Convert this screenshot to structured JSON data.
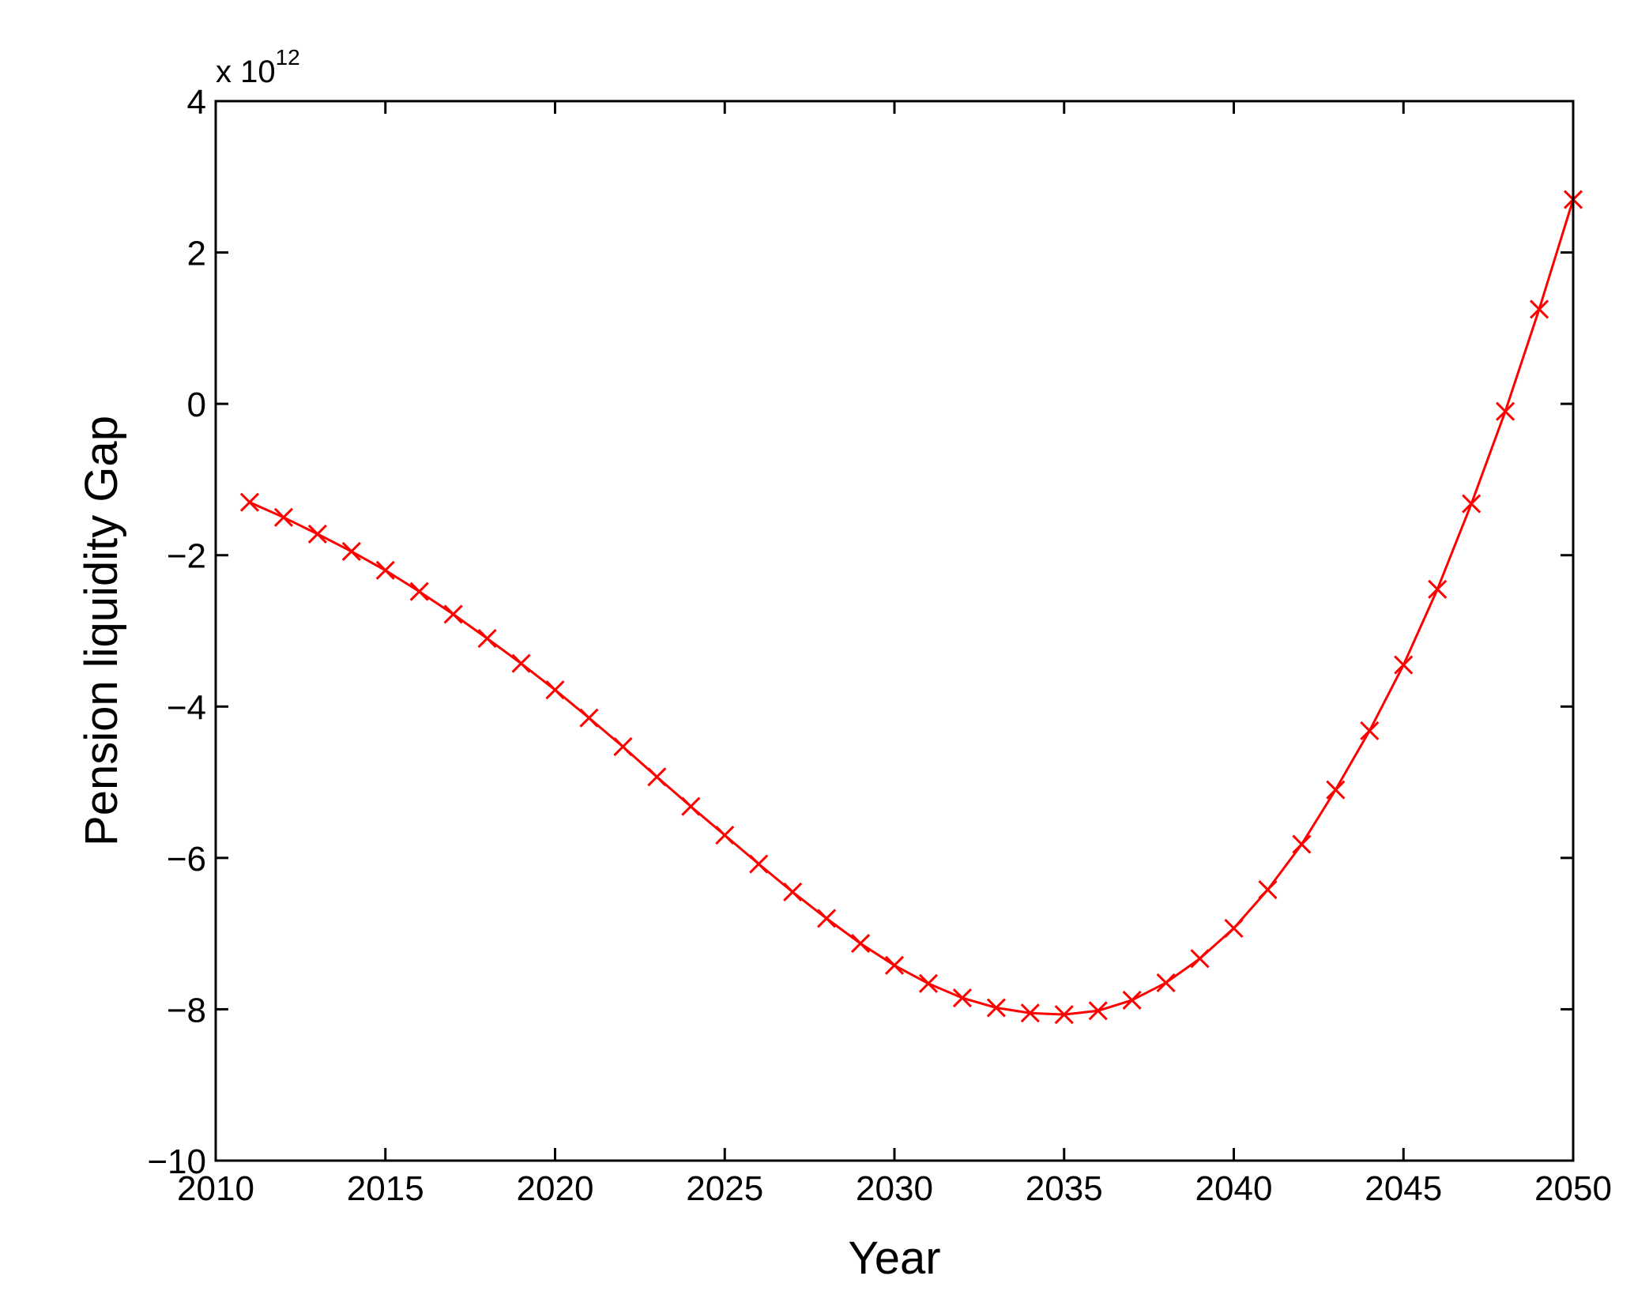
{
  "chart_data": {
    "type": "line",
    "title": "",
    "xlabel": "Year",
    "ylabel": "Pension liquidity Gap",
    "y_scale_factor": {
      "prefix": "x 10",
      "exponent": "12"
    },
    "xlim": [
      2010,
      2050
    ],
    "ylim": [
      -10,
      4
    ],
    "x_ticks": [
      "2010",
      "2015",
      "2020",
      "2025",
      "2030",
      "2035",
      "2040",
      "2045",
      "2050"
    ],
    "y_ticks": [
      "4",
      "2",
      "0",
      "−2",
      "−4",
      "−6",
      "−8",
      "−10"
    ],
    "grid": false,
    "legend": "none",
    "series": [
      {
        "color": "#ff0000",
        "marker": "x",
        "x": [
          2011,
          2012,
          2013,
          2014,
          2015,
          2016,
          2017,
          2018,
          2019,
          2020,
          2021,
          2022,
          2023,
          2024,
          2025,
          2026,
          2027,
          2028,
          2029,
          2030,
          2031,
          2032,
          2033,
          2034,
          2035,
          2036,
          2037,
          2038,
          2039,
          2040,
          2041,
          2042,
          2043,
          2044,
          2045,
          2046,
          2047,
          2048,
          2049,
          2050
        ],
        "y": [
          -1.3,
          -1.5,
          -1.72,
          -1.95,
          -2.2,
          -2.48,
          -2.78,
          -3.1,
          -3.43,
          -3.78,
          -4.15,
          -4.53,
          -4.93,
          -5.32,
          -5.7,
          -6.08,
          -6.45,
          -6.8,
          -7.13,
          -7.42,
          -7.66,
          -7.85,
          -7.98,
          -8.05,
          -8.07,
          -8.02,
          -7.88,
          -7.65,
          -7.33,
          -6.93,
          -6.42,
          -5.82,
          -5.1,
          -4.32,
          -3.45,
          -2.45,
          -1.32,
          -0.1,
          1.25,
          2.7
        ]
      }
    ]
  }
}
